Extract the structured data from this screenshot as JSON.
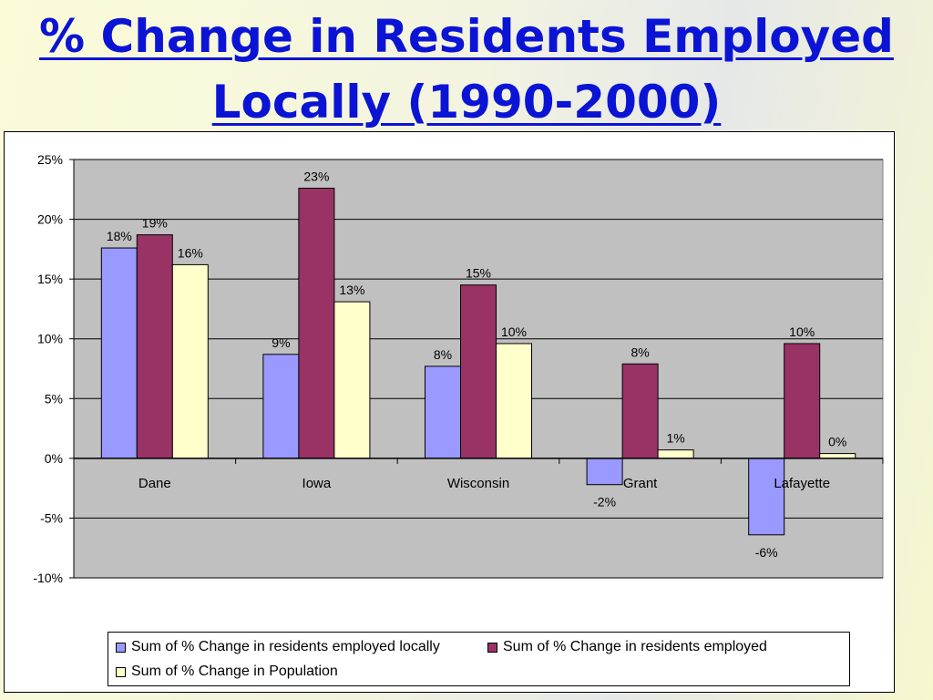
{
  "slide": {
    "title_line1": "% Change in Residents Employed",
    "title_line2": "Locally (1990-2000)"
  },
  "colors": {
    "title": "#0b14d4",
    "plot_background": "#c0c0c0",
    "series": [
      "#9999ff",
      "#993366",
      "#ffffcc"
    ]
  },
  "chart_data": {
    "type": "bar",
    "categories": [
      "Dane",
      "Iowa",
      "Wisconsin",
      "Grant",
      "Lafayette"
    ],
    "series": [
      {
        "name": "Sum of % Change in residents employed locally",
        "values": [
          17.6,
          8.7,
          7.7,
          -2.2,
          -6.4
        ],
        "labels": [
          "18%",
          "9%",
          "8%",
          "-2%",
          "-6%"
        ]
      },
      {
        "name": "Sum of % Change in residents employed",
        "values": [
          18.7,
          22.6,
          14.5,
          7.9,
          9.6
        ],
        "labels": [
          "19%",
          "23%",
          "15%",
          "8%",
          "10%"
        ]
      },
      {
        "name": "Sum of % Change in Population",
        "values": [
          16.2,
          13.1,
          9.6,
          0.7,
          0.4
        ],
        "labels": [
          "16%",
          "13%",
          "10%",
          "1%",
          "0%"
        ]
      }
    ],
    "ylim": [
      -10,
      25
    ],
    "yticks": [
      25,
      20,
      15,
      10,
      5,
      0,
      -5,
      -10
    ],
    "ytick_labels": [
      "25%",
      "20%",
      "15%",
      "10%",
      "5%",
      "0%",
      "-5%",
      "-10%"
    ],
    "grid": true,
    "legend_position": "bottom",
    "xlabel": "",
    "ylabel": ""
  }
}
